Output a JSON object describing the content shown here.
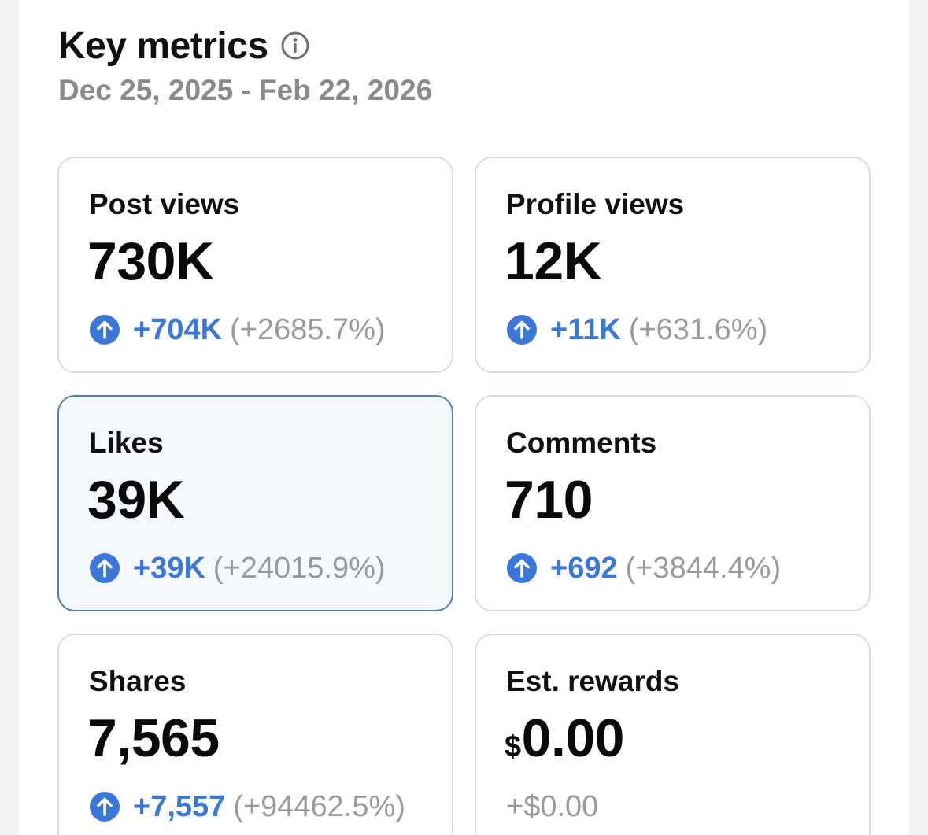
{
  "header": {
    "title": "Key metrics",
    "date_range": "Dec 25, 2025 - Feb 22, 2026",
    "info_icon": "info-circle-icon"
  },
  "colors": {
    "accent_blue": "#3b77d6",
    "muted_gray": "#9a9a9a",
    "selected_bg": "#f4f8fd",
    "selected_border": "#4a7fb5"
  },
  "metrics": [
    {
      "label": "Post views",
      "value": "730K",
      "delta": "+704K",
      "pct": "(+2685.7%)",
      "trend_icon": "arrow-up-circle-icon",
      "selected": false
    },
    {
      "label": "Profile views",
      "value": "12K",
      "delta": "+11K",
      "pct": "(+631.6%)",
      "trend_icon": "arrow-up-circle-icon",
      "selected": false
    },
    {
      "label": "Likes",
      "value": "39K",
      "delta": "+39K",
      "pct": "(+24015.9%)",
      "trend_icon": "arrow-up-circle-icon",
      "selected": true
    },
    {
      "label": "Comments",
      "value": "710",
      "delta": "+692",
      "pct": "(+3844.4%)",
      "trend_icon": "arrow-up-circle-icon",
      "selected": false
    },
    {
      "label": "Shares",
      "value": "7,565",
      "delta": "+7,557",
      "pct": "(+94462.5%)",
      "trend_icon": "arrow-up-circle-icon",
      "selected": false
    },
    {
      "label": "Est. rewards",
      "currency": "$",
      "value": "0.00",
      "change": "+$0.00",
      "selected": false
    }
  ]
}
